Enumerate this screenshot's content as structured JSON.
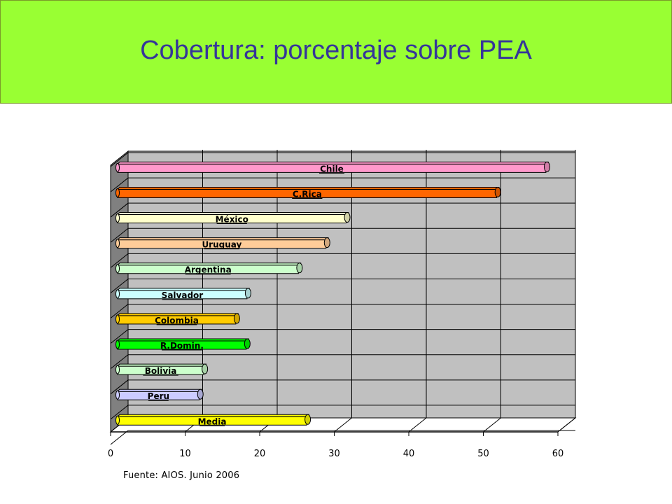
{
  "header": {
    "title": "Cobertura: porcentaje sobre PEA",
    "background": "#99ff33",
    "title_color": "#35359a"
  },
  "source": "Fuente: AIOS. Junio 2006",
  "chart_data": {
    "type": "bar",
    "orientation": "horizontal",
    "style": "3d-cylinder",
    "xlabel": "",
    "ylabel": "",
    "xlim": [
      0,
      60
    ],
    "xticks": [
      "0",
      "10",
      "20",
      "30",
      "40",
      "50",
      "60"
    ],
    "grid": true,
    "legend": "none",
    "plot_background": "#c0c0c0",
    "series": [
      {
        "values": [
          58.4,
          51.8,
          31.6,
          28.9,
          25.2,
          18.3,
          16.8,
          18.2,
          12.5,
          11.9,
          26.3
        ]
      }
    ],
    "categories": [
      "Chile",
      "C.Rica",
      "México",
      "Uruguay",
      "Argentina",
      "Salvador",
      "Colombia",
      "R.Domin.",
      "Bolivia",
      "Peru",
      "Media"
    ],
    "bar_colors": [
      "#ff99cc",
      "#ff6600",
      "#ffffcc",
      "#ffcc99",
      "#ccffcc",
      "#ccffff",
      "#ffcc00",
      "#00ff00",
      "#ccffcc",
      "#ccccff",
      "#ffff00"
    ]
  }
}
